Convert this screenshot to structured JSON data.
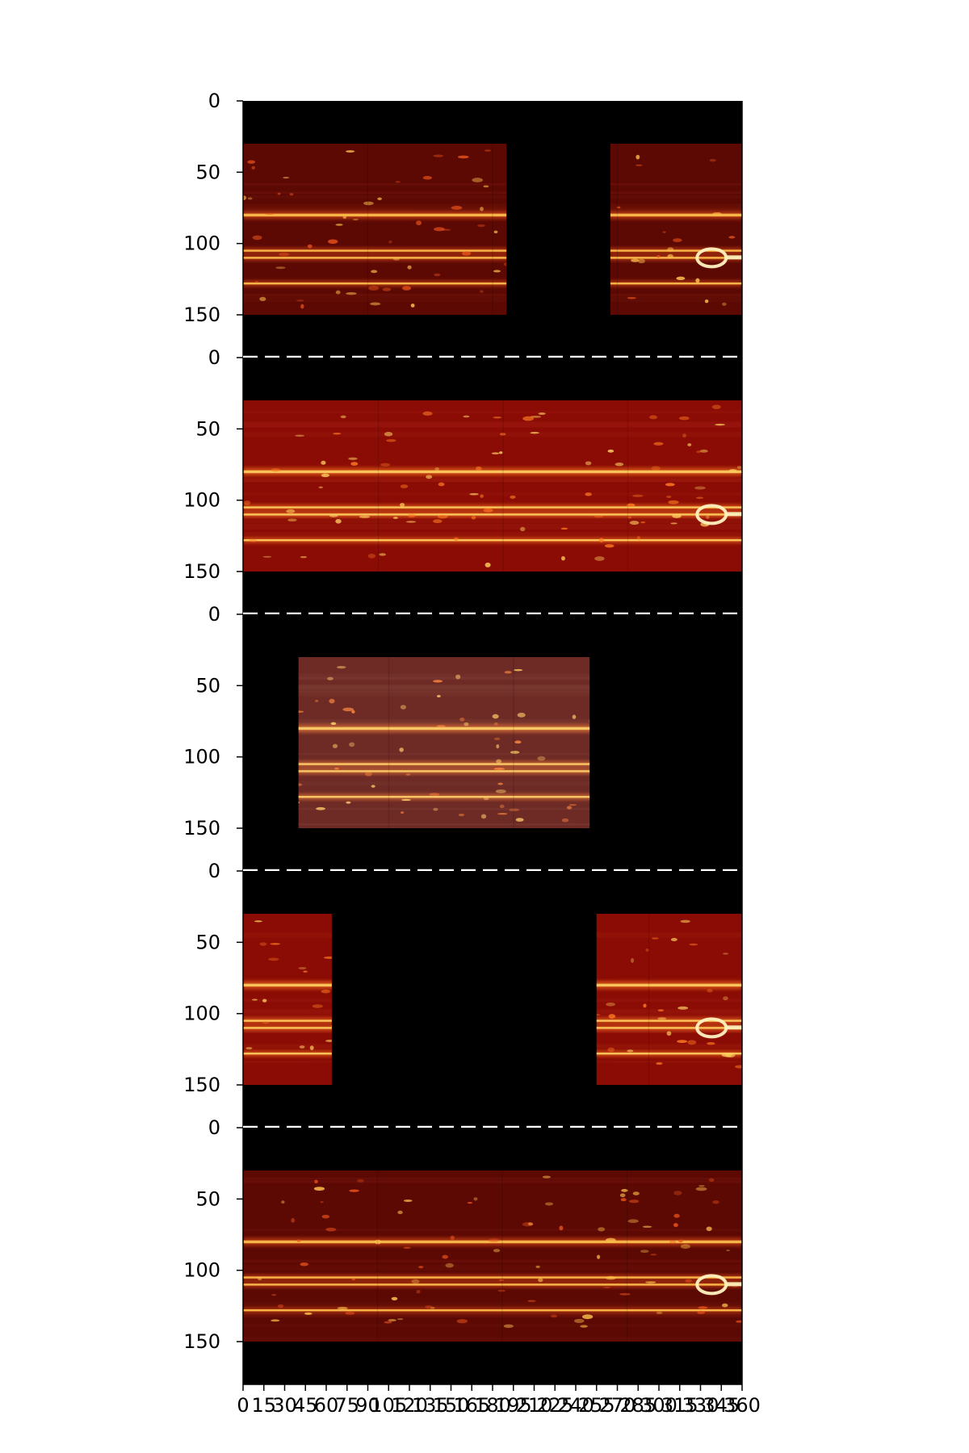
{
  "chart_data": {
    "type": "heatmap",
    "title": "",
    "xlabel": "",
    "ylabel": "",
    "colormap": "hot",
    "background_color": "#000000",
    "separator_color": "#ffffff",
    "separator_style": "dashed",
    "xlim": [
      0,
      360
    ],
    "xticks": [
      0,
      15,
      30,
      45,
      60,
      75,
      90,
      105,
      120,
      135,
      150,
      165,
      180,
      195,
      210,
      225,
      240,
      255,
      270,
      285,
      300,
      315,
      330,
      345,
      360
    ],
    "ylim": [
      180,
      0
    ],
    "yticks": [
      0,
      50,
      100,
      150
    ],
    "map_rows": [
      30,
      150
    ],
    "band_latitudes": [
      80,
      105,
      110,
      128
    ],
    "oval_feature": {
      "x": 338,
      "y": 110
    },
    "panels": [
      {
        "coverage": [
          [
            0,
            190
          ],
          [
            265,
            360
          ]
        ],
        "tone": "dark"
      },
      {
        "coverage": [
          [
            0,
            360
          ]
        ],
        "tone": "bright"
      },
      {
        "coverage": [
          [
            40,
            250
          ]
        ],
        "tone": "muted"
      },
      {
        "coverage": [
          [
            0,
            64
          ],
          [
            255,
            360
          ]
        ],
        "tone": "bright"
      },
      {
        "coverage": [
          [
            0,
            360
          ]
        ],
        "tone": "dark"
      }
    ]
  }
}
